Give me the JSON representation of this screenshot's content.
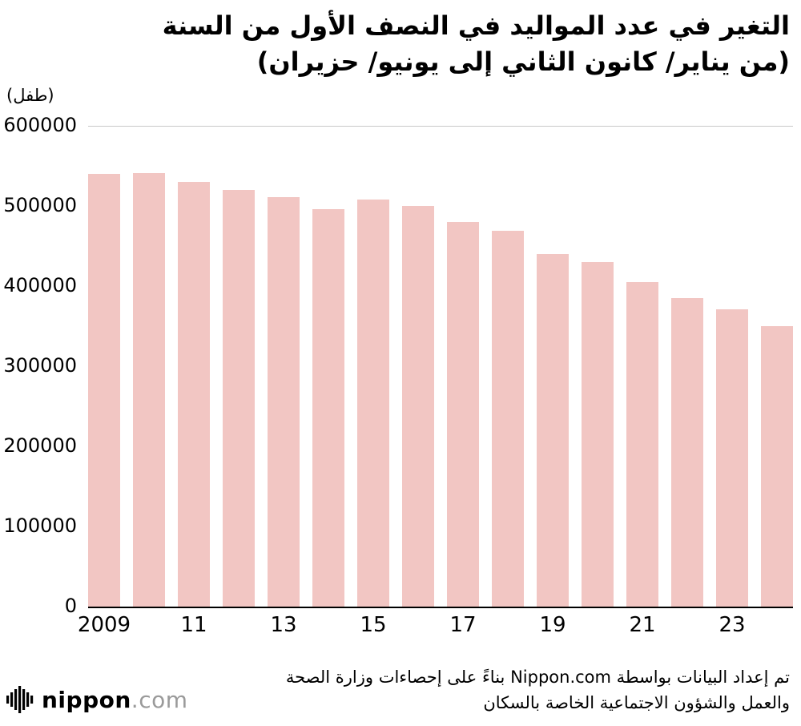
{
  "title": {
    "line1": "التغير في عدد المواليد في النصف الأول من السنة",
    "line2": "(من يناير/ كانون الثاني إلى يونيو/ حزيران)"
  },
  "unit_label": "(طفل)",
  "chart_data": {
    "type": "bar",
    "title": "التغير في عدد المواليد في النصف الأول من السنة (من يناير/ كانون الثاني إلى يونيو/ حزيران)",
    "ylabel": "(طفل)",
    "categories": [
      "2009",
      "2010",
      "2011",
      "2012",
      "2013",
      "2014",
      "2015",
      "2016",
      "2017",
      "2018",
      "2019",
      "2020",
      "2021",
      "2022",
      "2023",
      "2024"
    ],
    "values": [
      540000,
      541000,
      530000,
      520000,
      511000,
      496000,
      508000,
      500000,
      480000,
      469000,
      440000,
      430000,
      405000,
      385000,
      371000,
      350000
    ],
    "ylim": [
      0,
      600000
    ],
    "ytick_step": 100000,
    "ytick_labels": [
      "0",
      "100000",
      "200000",
      "300000",
      "400000",
      "500000",
      "600000"
    ],
    "xtick_labels": [
      "2009",
      "11",
      "13",
      "15",
      "17",
      "19",
      "21",
      "23"
    ],
    "xtick_positions": [
      0,
      2,
      4,
      6,
      8,
      10,
      12,
      14
    ],
    "bar_color": "#F2C6C3",
    "gridline_color": "#c8c8c8",
    "grid": "top line at 600000 only",
    "legend": "none"
  },
  "source": {
    "line1": "تم إعداد البيانات بواسطة Nippon.com بناءً على  إحصاءات وزارة الصحة",
    "line2": "والعمل والشؤون الاجتماعية الخاصة بالسكان"
  },
  "logo": {
    "name": "nippon",
    "tld": ".com"
  }
}
